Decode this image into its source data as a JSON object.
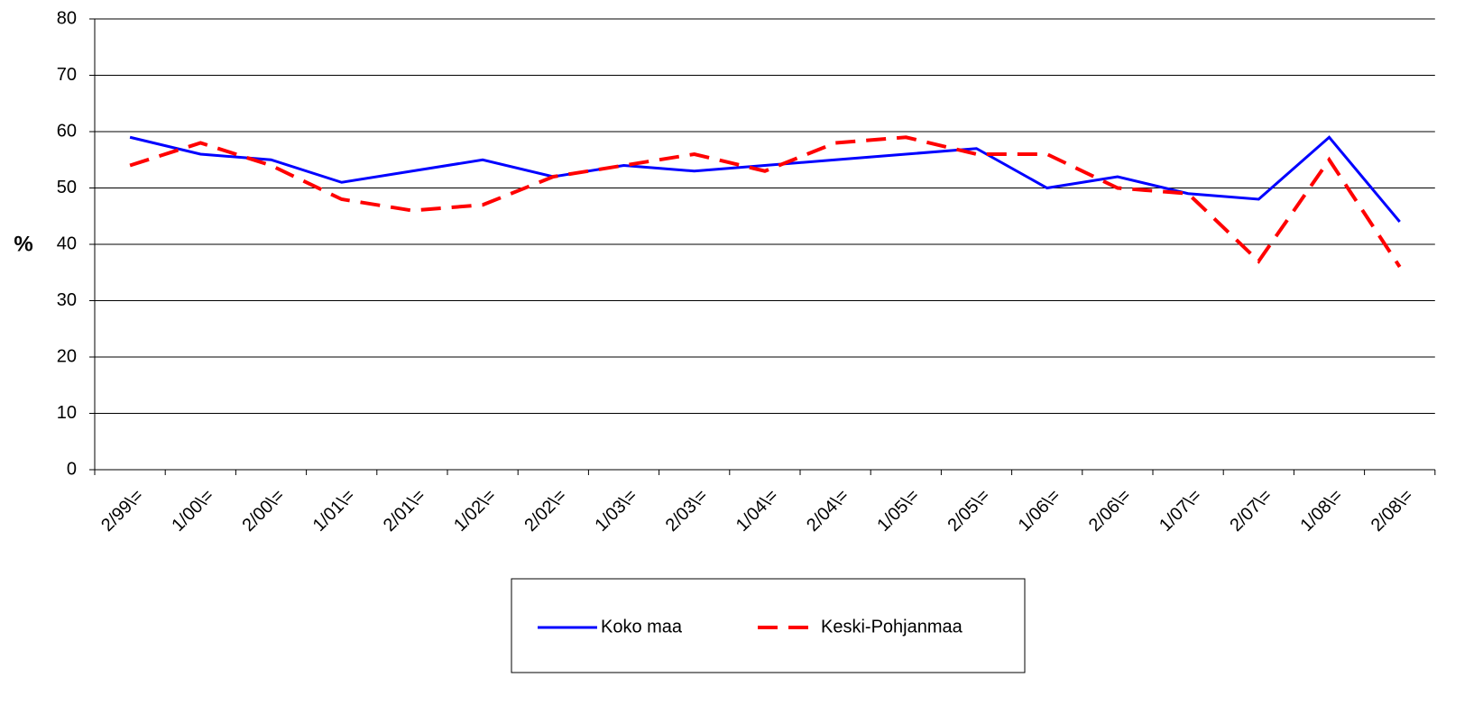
{
  "chart_data": {
    "type": "line",
    "y_label": "%",
    "categories": [
      "2/99\\=",
      "1/00\\=",
      "2/00\\=",
      "1/01\\=",
      "2/01\\=",
      "1/02\\=",
      "2/02\\=",
      "1/03\\=",
      "2/03\\=",
      "1/04\\=",
      "2/04\\=",
      "1/05\\=",
      "2/05\\=",
      "1/06\\=",
      "2/06\\=",
      "1/07\\=",
      "2/07\\=",
      "1/08\\=",
      "2/08\\="
    ],
    "series": [
      {
        "name": "Koko maa",
        "color": "#0000ff",
        "dash": false,
        "values": [
          59,
          56,
          55,
          51,
          53,
          55,
          52,
          54,
          53,
          54,
          55,
          56,
          57,
          50,
          52,
          49,
          48,
          59,
          44
        ]
      },
      {
        "name": "Keski-Pohjanmaa",
        "color": "#ff0000",
        "dash": true,
        "values": [
          54,
          58,
          54,
          48,
          46,
          47,
          52,
          54,
          56,
          53,
          58,
          59,
          56,
          56,
          50,
          49,
          37,
          55,
          36
        ]
      }
    ],
    "ylim": [
      0,
      80
    ],
    "yticks": [
      0,
      10,
      20,
      30,
      40,
      50,
      60,
      70,
      80
    ],
    "grid": true,
    "legend": "bottom"
  }
}
